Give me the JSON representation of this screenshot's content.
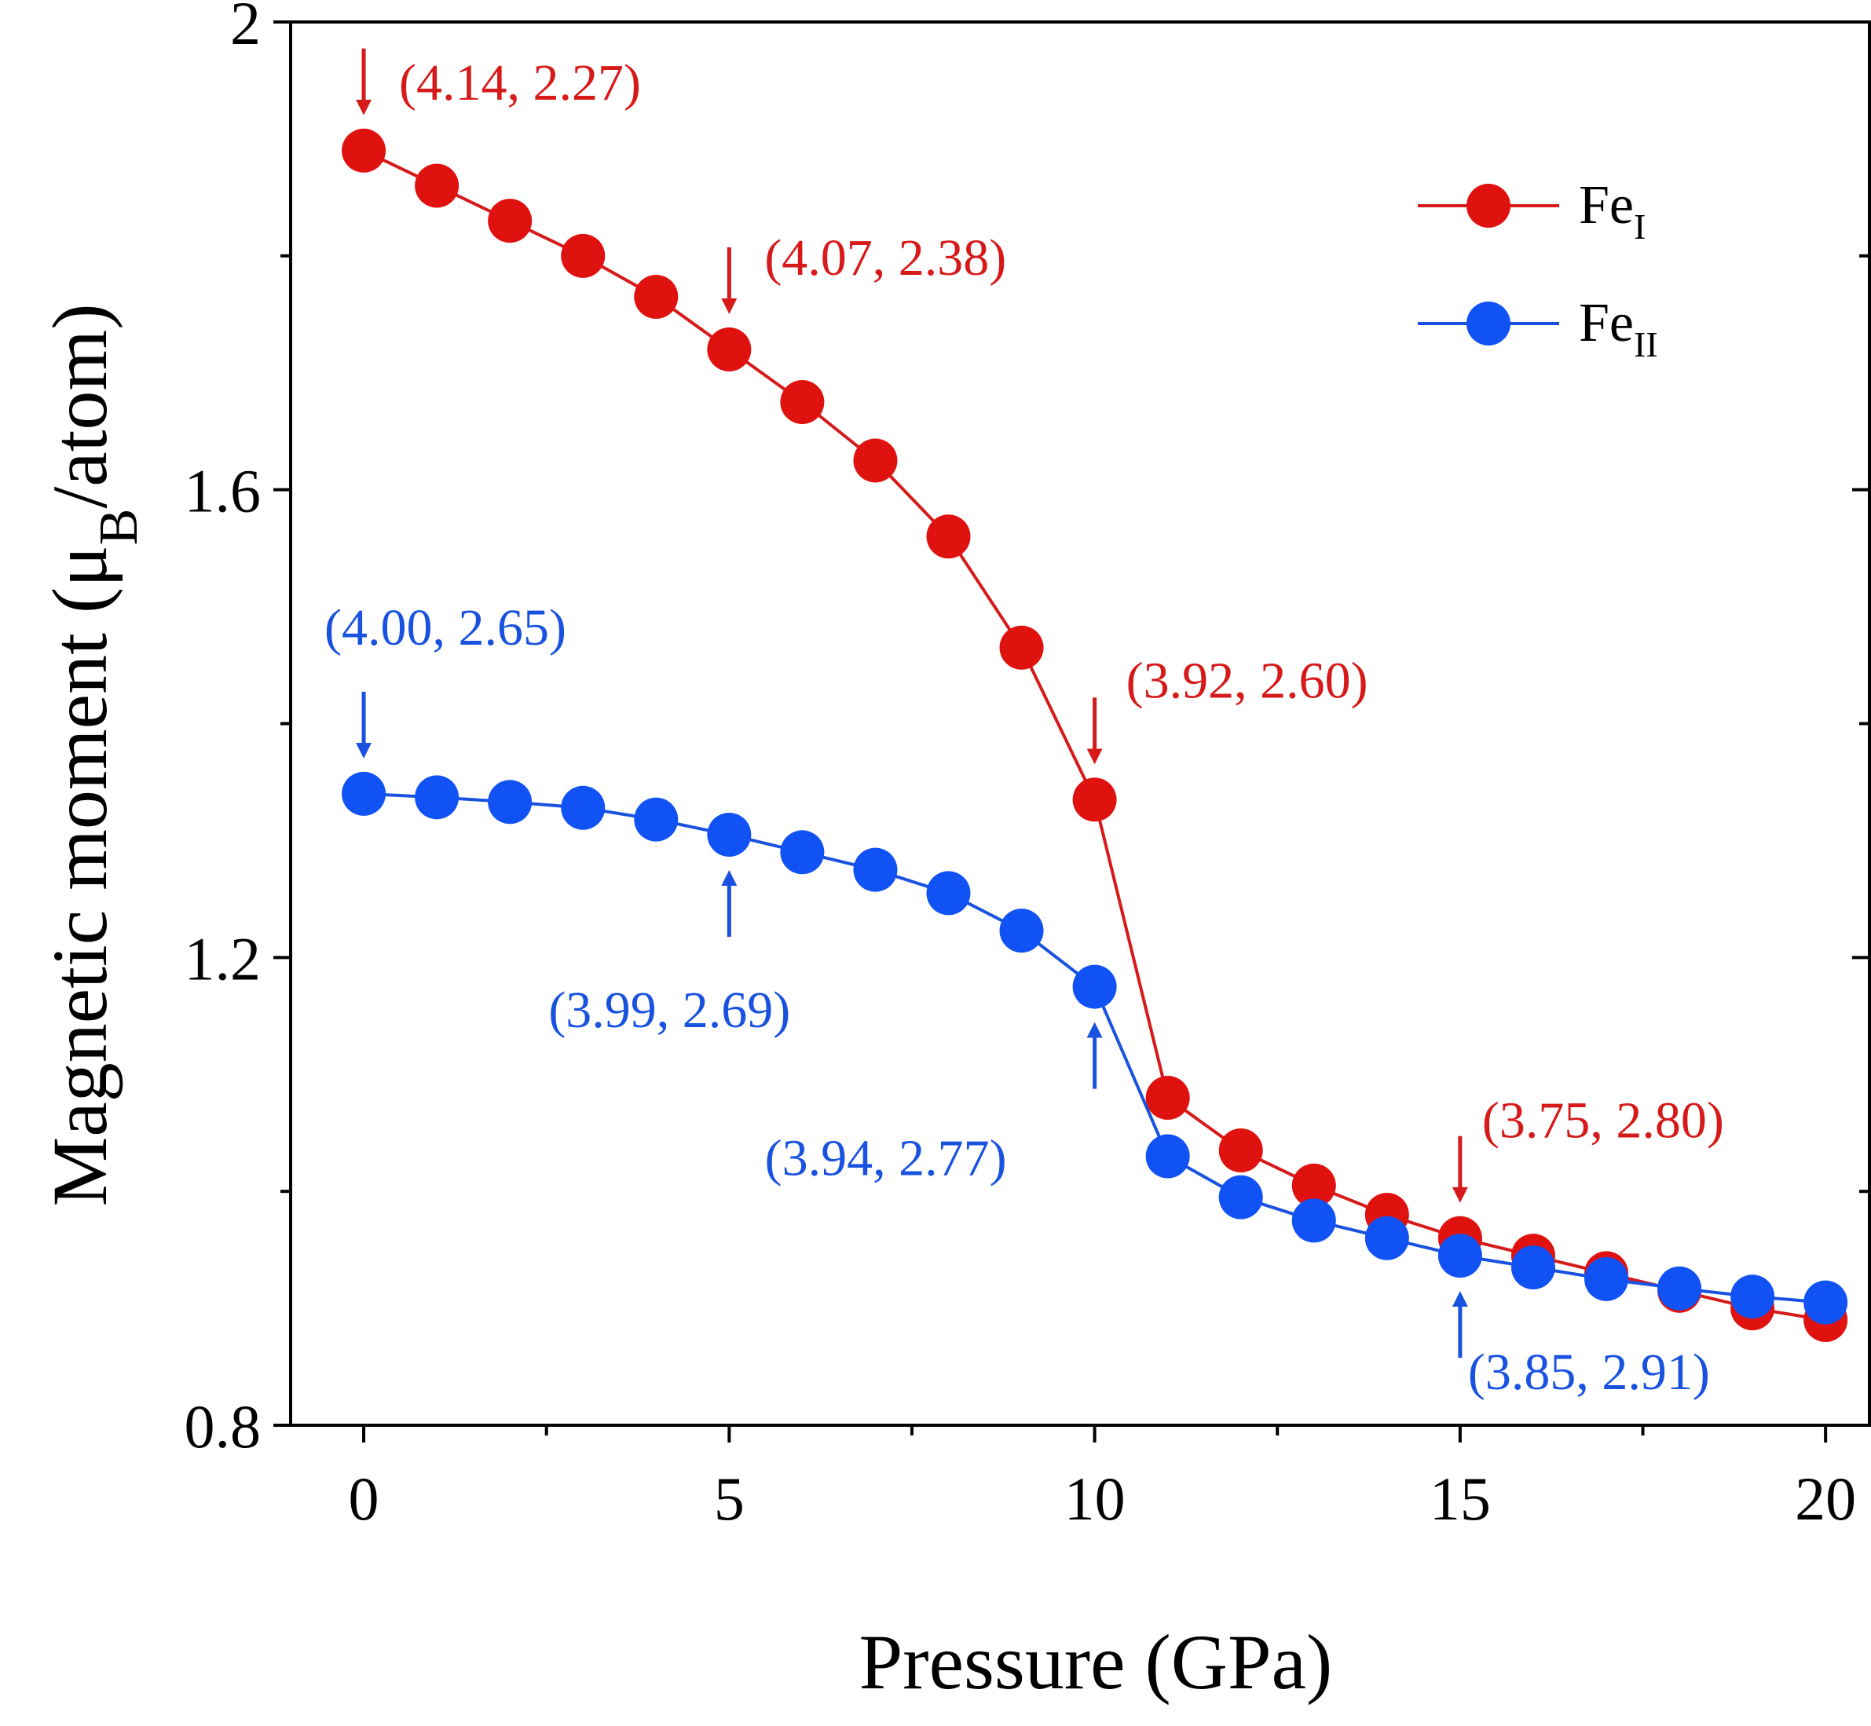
{
  "chart_data": {
    "type": "line",
    "xlabel": "Pressure (GPa)",
    "ylabel_main": "Magnetic moment (μ",
    "ylabel_sub": "B",
    "ylabel_tail": "/atom)",
    "xlim": [
      -1,
      20.6
    ],
    "ylim": [
      0.8,
      2.0
    ],
    "xticks": [
      0,
      5,
      10,
      15,
      20
    ],
    "yticks": [
      0.8,
      1.2,
      1.6,
      2.0
    ],
    "ytick_labels": [
      "0.8",
      "1.2",
      "1.6",
      "2"
    ],
    "x": [
      0,
      1,
      2,
      3,
      4,
      5,
      6,
      7,
      8,
      9,
      10,
      11,
      12,
      13,
      14,
      15,
      16,
      17,
      18,
      19,
      20
    ],
    "series": [
      {
        "name": "Fe",
        "name_sub": "I",
        "color": "#d61a1a",
        "marker_color": "#e0120f",
        "values": [
          1.89,
          1.86,
          1.83,
          1.8,
          1.765,
          1.72,
          1.675,
          1.625,
          1.56,
          1.465,
          1.335,
          1.08,
          1.035,
          1.005,
          0.98,
          0.96,
          0.945,
          0.93,
          0.915,
          0.9,
          0.89
        ]
      },
      {
        "name": "Fe",
        "name_sub": "II",
        "color": "#1a52e0",
        "marker_color": "#1152f5",
        "values": [
          1.34,
          1.337,
          1.333,
          1.328,
          1.318,
          1.305,
          1.29,
          1.275,
          1.255,
          1.223,
          1.175,
          1.03,
          0.995,
          0.975,
          0.96,
          0.945,
          0.935,
          0.925,
          0.917,
          0.91,
          0.905
        ]
      }
    ],
    "legend_position": "top-right",
    "grid": false,
    "annotations": [
      {
        "series": 0,
        "x": 0,
        "text": "(4.14, 2.27)",
        "arrow": "down"
      },
      {
        "series": 0,
        "x": 5,
        "text": "(4.07, 2.38)",
        "arrow": "down"
      },
      {
        "series": 0,
        "x": 10,
        "text": "(3.92, 2.60)",
        "arrow": "down"
      },
      {
        "series": 0,
        "x": 15,
        "text": "(3.75, 2.80)",
        "arrow": "down"
      },
      {
        "series": 1,
        "x": 0,
        "text": "(4.00, 2.65)",
        "arrow": "down"
      },
      {
        "series": 1,
        "x": 5,
        "text": "(3.99, 2.69)",
        "arrow": "up"
      },
      {
        "series": 1,
        "x": 10,
        "text": "(3.94, 2.77)",
        "arrow": "up"
      },
      {
        "series": 1,
        "x": 15,
        "text": "(3.85, 2.91)",
        "arrow": "up"
      }
    ]
  }
}
